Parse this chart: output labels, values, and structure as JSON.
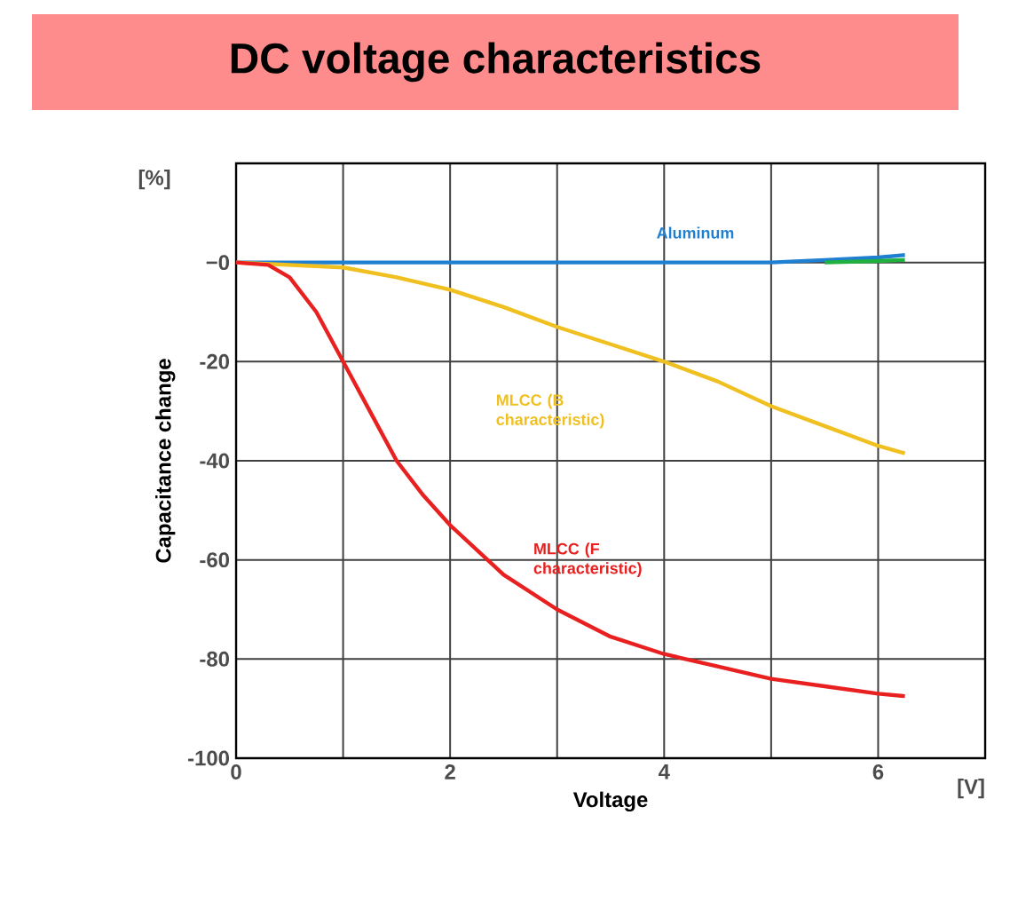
{
  "chart_data": {
    "type": "line",
    "title": "DC voltage characteristics",
    "xlabel": "Voltage",
    "ylabel": "Capacitance  change",
    "xlim": [
      0,
      7
    ],
    "ylim": [
      -100,
      20
    ],
    "xticks": [
      0,
      {
        "value": 1,
        "label": null
      },
      2,
      {
        "value": 3,
        "label": null
      },
      4,
      {
        "value": 5,
        "label": null
      },
      6
    ],
    "yticks": [
      -100,
      -80,
      -60,
      -40,
      -20,
      {
        "value": 0,
        "label": "−0"
      }
    ],
    "grid": true,
    "annotations": [
      "[%]",
      "[V]"
    ],
    "series": [
      {
        "name": "Aluminum",
        "color": "#1f7fd0",
        "x": [
          0,
          1,
          2,
          3,
          4,
          5,
          5.5,
          6,
          6.25
        ],
        "values": [
          0,
          0,
          0,
          0,
          0,
          0,
          0.5,
          1,
          1.5
        ]
      },
      {
        "color": "#20b040",
        "x": [
          5.5,
          6,
          6.25
        ],
        "values": [
          0,
          0.3,
          0.5
        ]
      },
      {
        "name": "MLCC (B characteristic)",
        "color": "#f0c020",
        "x": [
          0,
          1,
          1.5,
          2,
          2.5,
          3,
          3.5,
          4,
          4.5,
          5,
          5.5,
          6,
          6.25
        ],
        "values": [
          0,
          -1,
          -3,
          -5.5,
          -9,
          -13,
          -16.5,
          -20,
          -24,
          -29,
          -33,
          -37,
          -38.5
        ]
      },
      {
        "name": "MLCC (F characteristic)",
        "color": "#e82020",
        "x": [
          0,
          0.3,
          0.5,
          0.75,
          1,
          1.25,
          1.5,
          1.75,
          2,
          2.5,
          3,
          3.5,
          4,
          4.5,
          5,
          5.5,
          6,
          6.25
        ],
        "values": [
          0,
          -0.5,
          -3,
          -10,
          -20,
          -30,
          -40,
          -47,
          -53,
          -63,
          -70,
          -75.5,
          -79,
          -81.5,
          -84,
          -85.5,
          -87,
          -87.5
        ]
      }
    ]
  }
}
